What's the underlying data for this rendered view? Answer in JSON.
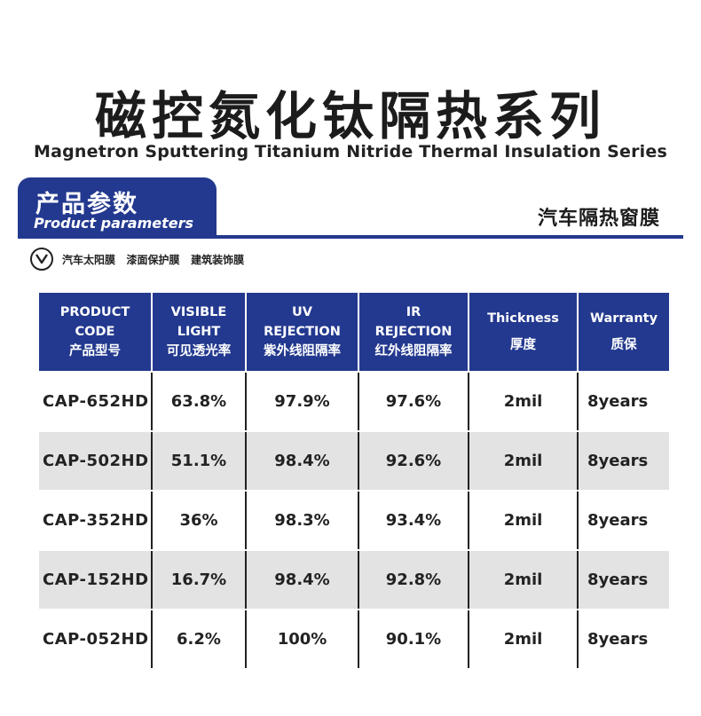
{
  "title_cn": "磁控氮化钛隔热系列",
  "title_en": "Magnetron Sputtering Titanium Nitride Thermal Insulation Series",
  "params": {
    "cn": "产品参数",
    "en": "Product parameters"
  },
  "category": "汽车隔热窗膜",
  "applications": "汽车太阳膜   漆面保护膜   建筑装饰膜",
  "icon": "chevron-down-circle-icon",
  "colors": {
    "header": "#23398f",
    "row_alt": "#e3e3e3"
  },
  "table": {
    "headers": [
      {
        "lines": [
          "PRODUCT",
          "CODE",
          "产品型号"
        ]
      },
      {
        "lines": [
          "VISIBLE",
          "LIGHT",
          "可见透光率"
        ]
      },
      {
        "lines": [
          "UV",
          "REJECTION",
          "紫外线阻隔率"
        ]
      },
      {
        "lines": [
          "IR",
          "REJECTION",
          "红外线阻隔率"
        ]
      },
      {
        "lines": [
          "Thickness",
          "厚度"
        ]
      },
      {
        "lines": [
          "Warranty",
          "质保"
        ]
      }
    ],
    "rows": [
      {
        "code": "CAP-652HD",
        "visible": "63.8%",
        "uv": "97.9%",
        "ir": "97.6%",
        "thickness": "2mil",
        "warranty": "8years"
      },
      {
        "code": "CAP-502HD",
        "visible": "51.1%",
        "uv": "98.4%",
        "ir": "92.6%",
        "thickness": "2mil",
        "warranty": "8years"
      },
      {
        "code": "CAP-352HD",
        "visible": "36%",
        "uv": "98.3%",
        "ir": "93.4%",
        "thickness": "2mil",
        "warranty": "8years"
      },
      {
        "code": "CAP-152HD",
        "visible": "16.7%",
        "uv": "98.4%",
        "ir": "92.8%",
        "thickness": "2mil",
        "warranty": "8years"
      },
      {
        "code": "CAP-052HD",
        "visible": "6.2%",
        "uv": "100%",
        "ir": "90.1%",
        "thickness": "2mil",
        "warranty": "8years"
      }
    ]
  }
}
